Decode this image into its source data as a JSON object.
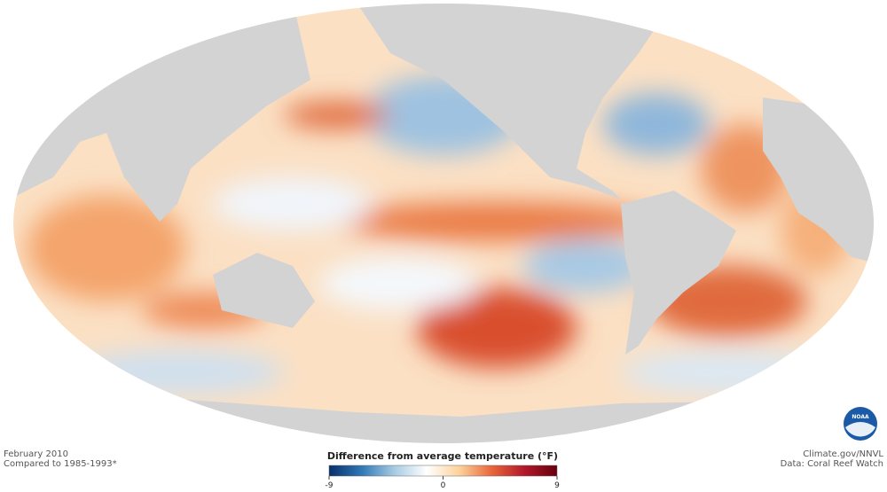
{
  "caption": {
    "date": "February 2010",
    "baseline": "Compared to 1985-1993*"
  },
  "legend": {
    "title": "Difference from average temperature (°F)",
    "range": [
      -9,
      9
    ],
    "ticks": [
      -9,
      0,
      9
    ],
    "colors": [
      "#08306b",
      "#2f78b5",
      "#a7cbe3",
      "#ffffff",
      "#fdd29a",
      "#e8663a",
      "#b2182b",
      "#67000d"
    ]
  },
  "credits": {
    "site": "Climate.gov/NNVL",
    "source": "Data: Coral Reef Watch"
  },
  "logo": {
    "text": "NOAA"
  }
}
